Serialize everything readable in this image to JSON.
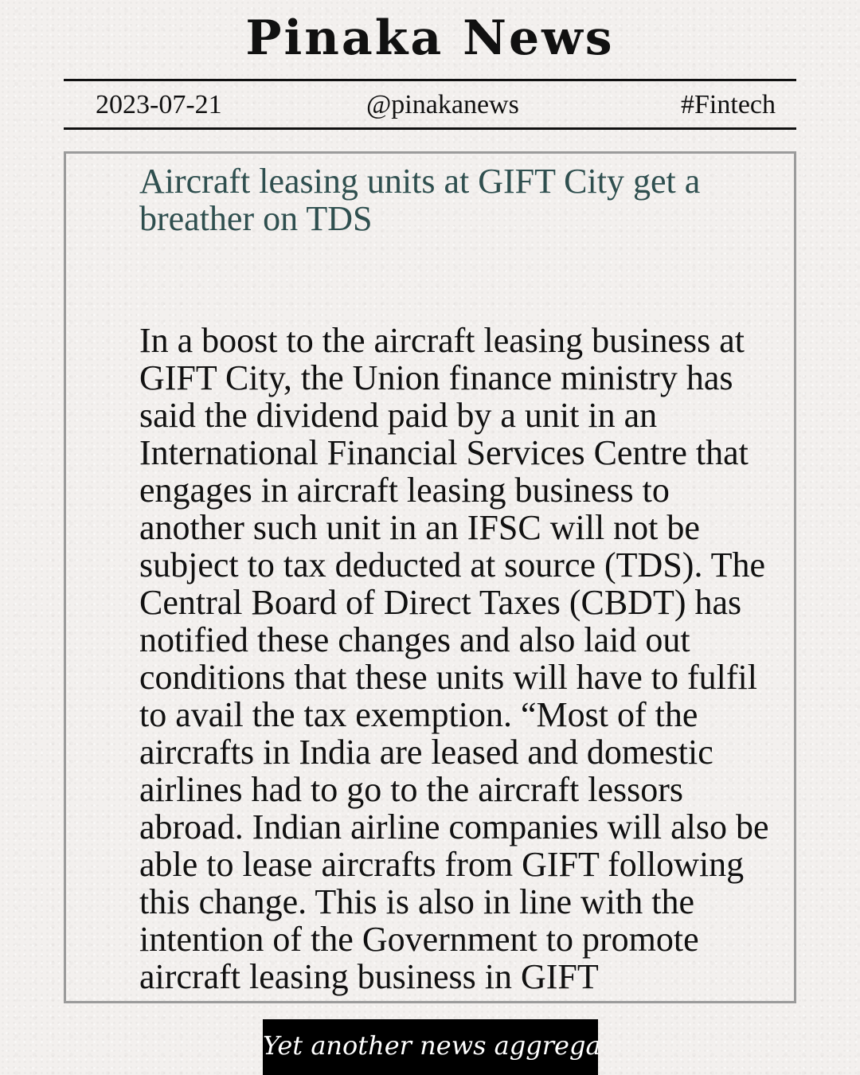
{
  "masthead": {
    "title": "Pinaka News"
  },
  "meta": {
    "date": "2023-07-21",
    "handle": "@pinakanews",
    "tag": "#Fintech"
  },
  "article": {
    "headline": "Aircraft leasing units at GIFT City get a breather on TDS",
    "body": "In a boost to the aircraft leasing business at GIFT City, the Union finance ministry has said the dividend paid by a unit in an International Financial Services Centre that engages in aircraft leasing business to another such unit in an IFSC will not be subject to tax deducted at source (TDS). The Central Board of Direct Taxes (CBDT) has notified these changes and also laid out conditions that these units will have to fulfil to avail the tax exemption. “Most of the aircrafts in India are leased and domestic airlines had to go to the aircraft lessors abroad. Indian airline companies will also be able to lease aircrafts from GIFT following this change. This is also in line with the intention of the Government to promote aircraft leasing business in GIFT"
  },
  "footer": {
    "banner": "Yet another news aggregator"
  },
  "colors": {
    "background": "#f3f0ee",
    "text": "#111111",
    "headline": "#2f4f4f",
    "frame_border": "#9b9b9b",
    "banner_bg": "#000000",
    "banner_text": "#ffffff"
  }
}
